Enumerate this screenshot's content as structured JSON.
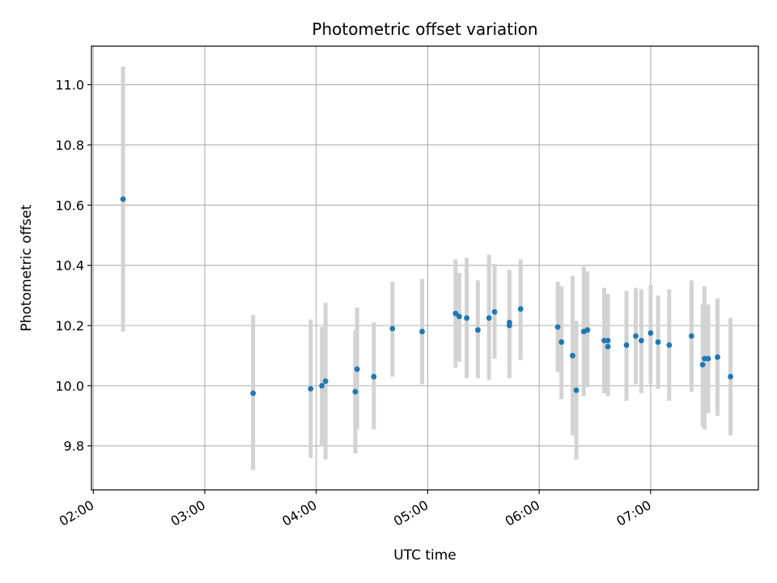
{
  "chart_data": {
    "type": "scatter",
    "title": "Photometric offset variation",
    "xlabel": "UTC time",
    "ylabel": "Photometric offset",
    "x_ticks": [
      "02:00",
      "03:00",
      "04:00",
      "05:00",
      "06:00",
      "07:00"
    ],
    "y_ticks": [
      "9.8",
      "10.0",
      "10.2",
      "10.4",
      "10.6",
      "10.8",
      "11.0"
    ],
    "xlim": [
      "01:59",
      "07:58"
    ],
    "ylim": [
      9.654,
      11.128
    ],
    "grid": true,
    "colors": {
      "point": "#1f77b4",
      "errorbar": "#d3d3d3",
      "grid": "#b0b0b0"
    },
    "points": [
      {
        "x": "02:16",
        "y": 10.62,
        "ylo": 10.18,
        "yhi": 11.06
      },
      {
        "x": "03:26",
        "y": 9.975,
        "ylo": 9.72,
        "yhi": 10.235
      },
      {
        "x": "03:57",
        "y": 9.99,
        "ylo": 9.76,
        "yhi": 10.22
      },
      {
        "x": "04:03",
        "y": 10.0,
        "ylo": 9.8,
        "yhi": 10.195
      },
      {
        "x": "04:05",
        "y": 10.015,
        "ylo": 9.755,
        "yhi": 10.275
      },
      {
        "x": "04:21",
        "y": 9.98,
        "ylo": 9.775,
        "yhi": 10.185
      },
      {
        "x": "04:22",
        "y": 10.055,
        "ylo": 9.855,
        "yhi": 10.26
      },
      {
        "x": "04:31",
        "y": 10.03,
        "ylo": 9.855,
        "yhi": 10.21
      },
      {
        "x": "04:41",
        "y": 10.19,
        "ylo": 10.03,
        "yhi": 10.345
      },
      {
        "x": "04:57",
        "y": 10.18,
        "ylo": 10.005,
        "yhi": 10.355
      },
      {
        "x": "05:15",
        "y": 10.24,
        "ylo": 10.06,
        "yhi": 10.42
      },
      {
        "x": "05:17",
        "y": 10.23,
        "ylo": 10.08,
        "yhi": 10.375
      },
      {
        "x": "05:21",
        "y": 10.225,
        "ylo": 10.025,
        "yhi": 10.425
      },
      {
        "x": "05:27",
        "y": 10.185,
        "ylo": 10.025,
        "yhi": 10.35
      },
      {
        "x": "05:33",
        "y": 10.225,
        "ylo": 10.02,
        "yhi": 10.435
      },
      {
        "x": "05:36",
        "y": 10.245,
        "ylo": 10.09,
        "yhi": 10.405
      },
      {
        "x": "05:44",
        "y": 10.21,
        "ylo": 10.04,
        "yhi": 10.385
      },
      {
        "x": "05:44",
        "y": 10.2,
        "ylo": 10.025,
        "yhi": 10.38
      },
      {
        "x": "05:50",
        "y": 10.255,
        "ylo": 10.085,
        "yhi": 10.42
      },
      {
        "x": "06:10",
        "y": 10.195,
        "ylo": 10.045,
        "yhi": 10.345
      },
      {
        "x": "06:12",
        "y": 10.145,
        "ylo": 9.955,
        "yhi": 10.33
      },
      {
        "x": "06:18",
        "y": 10.1,
        "ylo": 9.835,
        "yhi": 10.365
      },
      {
        "x": "06:20",
        "y": 9.985,
        "ylo": 9.755,
        "yhi": 10.215
      },
      {
        "x": "06:24",
        "y": 10.18,
        "ylo": 9.965,
        "yhi": 10.395
      },
      {
        "x": "06:26",
        "y": 10.185,
        "ylo": 9.995,
        "yhi": 10.38
      },
      {
        "x": "06:35",
        "y": 10.15,
        "ylo": 9.975,
        "yhi": 10.325
      },
      {
        "x": "06:37",
        "y": 10.15,
        "ylo": 10.0,
        "yhi": 10.305
      },
      {
        "x": "06:37",
        "y": 10.13,
        "ylo": 9.965,
        "yhi": 10.295
      },
      {
        "x": "06:47",
        "y": 10.135,
        "ylo": 9.95,
        "yhi": 10.315
      },
      {
        "x": "06:52",
        "y": 10.165,
        "ylo": 10.005,
        "yhi": 10.325
      },
      {
        "x": "06:55",
        "y": 10.15,
        "ylo": 9.975,
        "yhi": 10.32
      },
      {
        "x": "06:60",
        "y": 10.175,
        "ylo": 10.005,
        "yhi": 10.335
      },
      {
        "x": "07:04",
        "y": 10.145,
        "ylo": 9.99,
        "yhi": 10.3
      },
      {
        "x": "07:10",
        "y": 10.135,
        "ylo": 9.95,
        "yhi": 10.32
      },
      {
        "x": "07:22",
        "y": 10.165,
        "ylo": 9.98,
        "yhi": 10.35
      },
      {
        "x": "07:28",
        "y": 10.07,
        "ylo": 9.865,
        "yhi": 10.27
      },
      {
        "x": "07:29",
        "y": 10.09,
        "ylo": 9.855,
        "yhi": 10.33
      },
      {
        "x": "07:31",
        "y": 10.09,
        "ylo": 9.91,
        "yhi": 10.27
      },
      {
        "x": "07:36",
        "y": 10.095,
        "ylo": 9.9,
        "yhi": 10.29
      },
      {
        "x": "07:43",
        "y": 10.03,
        "ylo": 9.835,
        "yhi": 10.225
      }
    ]
  }
}
